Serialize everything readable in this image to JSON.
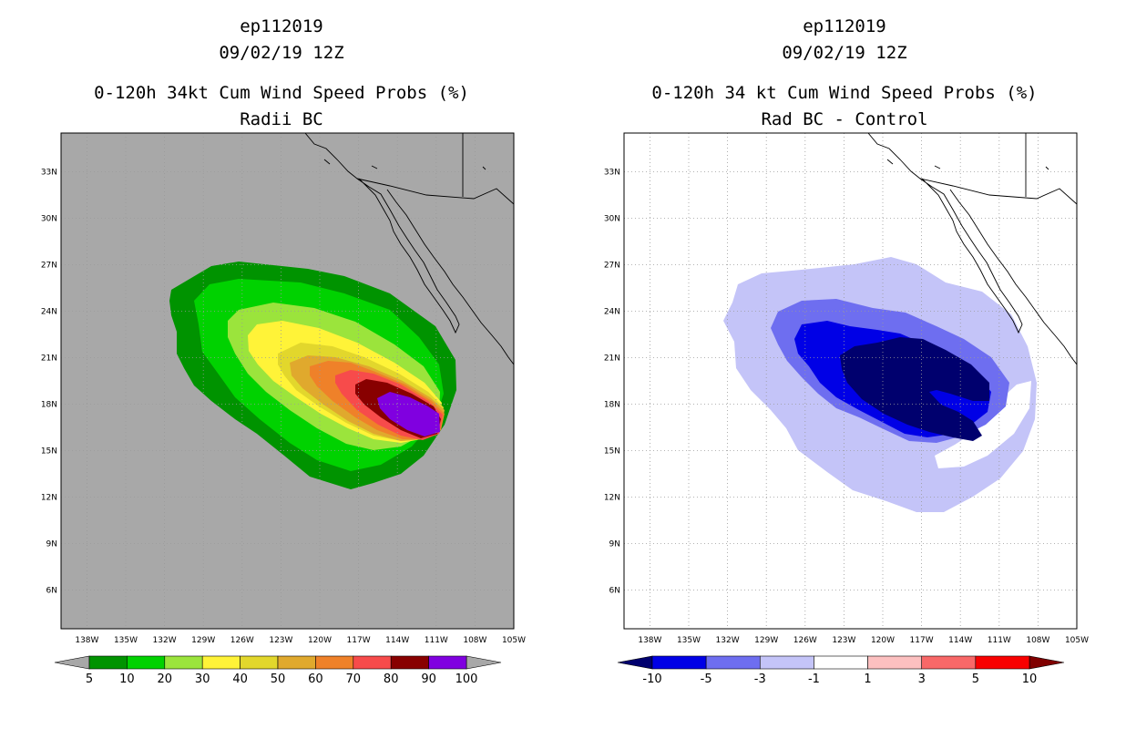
{
  "panels": [
    {
      "id": "left",
      "title": {
        "line1": "ep112019",
        "line2": "09/02/19 12Z",
        "line3": "0-120h 34kt Cum Wind Speed Probs (%)",
        "line4": "Radii BC"
      },
      "background": "#a8a8a8",
      "coast": "#000000",
      "colorbar": {
        "labels": [
          "5",
          "10",
          "20",
          "30",
          "40",
          "50",
          "60",
          "70",
          "80",
          "90",
          "100"
        ],
        "colors": [
          "#009300",
          "#00d200",
          "#9be43c",
          "#fff338",
          "#e2d72c",
          "#e0a92d",
          "#ef8129",
          "#f74b4b",
          "#880000",
          "#8000e0"
        ],
        "end_left": "#a8a8a8",
        "end_right": "#a8a8a8"
      },
      "contours": [
        {
          "level": "5",
          "color": "#009300"
        },
        {
          "level": "10",
          "color": "#00d200"
        },
        {
          "level": "20",
          "color": "#9be43c"
        },
        {
          "level": "30",
          "color": "#fff338"
        },
        {
          "level": "40",
          "color": "#e2d72c"
        },
        {
          "level": "50",
          "color": "#e0a92d"
        },
        {
          "level": "60",
          "color": "#ef8129"
        },
        {
          "level": "70",
          "color": "#f74b4b"
        },
        {
          "level": "80",
          "color": "#880000"
        },
        {
          "level": "90",
          "color": "#8000e0"
        }
      ]
    },
    {
      "id": "right",
      "title": {
        "line1": "ep112019",
        "line2": "09/02/19 12Z",
        "line3": "0-120h 34 kt Cum Wind Speed Probs (%)",
        "line4": "Rad BC - Control"
      },
      "background": "#ffffff",
      "coast": "#000000",
      "colorbar": {
        "labels": [
          "-10",
          "-5",
          "-3",
          "-1",
          "1",
          "3",
          "5",
          "10"
        ],
        "colors": [
          "#0000e6",
          "#6e6ef0",
          "#c4c4f8",
          "#ffffff",
          "#fcc0c0",
          "#f86868",
          "#f80000"
        ],
        "end_left": "#00006e",
        "end_right": "#800000"
      },
      "contours": [
        {
          "level": "-1",
          "color": "#c4c4f8"
        },
        {
          "level": "-3",
          "color": "#6e6ef0"
        },
        {
          "level": "-5",
          "color": "#0000e6"
        },
        {
          "level": "-10",
          "color": "#00006e"
        }
      ]
    }
  ],
  "chart_data": [
    {
      "type": "heatmap",
      "title": "ep112019 09/02/19 12Z 0-120h 34kt Cum Wind Speed Probs (%) Radii BC",
      "xlabel": "",
      "ylabel": "",
      "x_ticks": [
        "138W",
        "135W",
        "132W",
        "129W",
        "126W",
        "123W",
        "120W",
        "117W",
        "114W",
        "111W",
        "108W",
        "105W"
      ],
      "y_ticks": [
        "33N",
        "30N",
        "27N",
        "24N",
        "21N",
        "18N",
        "15N",
        "12N",
        "9N",
        "6N"
      ],
      "xlim": [
        -140,
        -105
      ],
      "ylim": [
        3.5,
        35.5
      ],
      "levels": [
        5,
        10,
        20,
        30,
        40,
        50,
        60,
        70,
        80,
        90,
        100
      ],
      "grid": true,
      "max_prob_center": [
        -112.5,
        17.5
      ]
    },
    {
      "type": "heatmap",
      "title": "ep112019 09/02/19 12Z 0-120h 34 kt Cum Wind Speed Probs (%) Rad BC - Control",
      "xlabel": "",
      "ylabel": "",
      "x_ticks": [
        "138W",
        "135W",
        "132W",
        "129W",
        "126W",
        "123W",
        "120W",
        "117W",
        "114W",
        "111W",
        "108W",
        "105W"
      ],
      "y_ticks": [
        "33N",
        "30N",
        "27N",
        "24N",
        "21N",
        "18N",
        "15N",
        "12N",
        "9N",
        "6N"
      ],
      "xlim": [
        -140,
        -105
      ],
      "ylim": [
        3.5,
        35.5
      ],
      "levels": [
        -10,
        -5,
        -3,
        -1,
        1,
        3,
        5,
        10
      ],
      "grid": true
    }
  ]
}
